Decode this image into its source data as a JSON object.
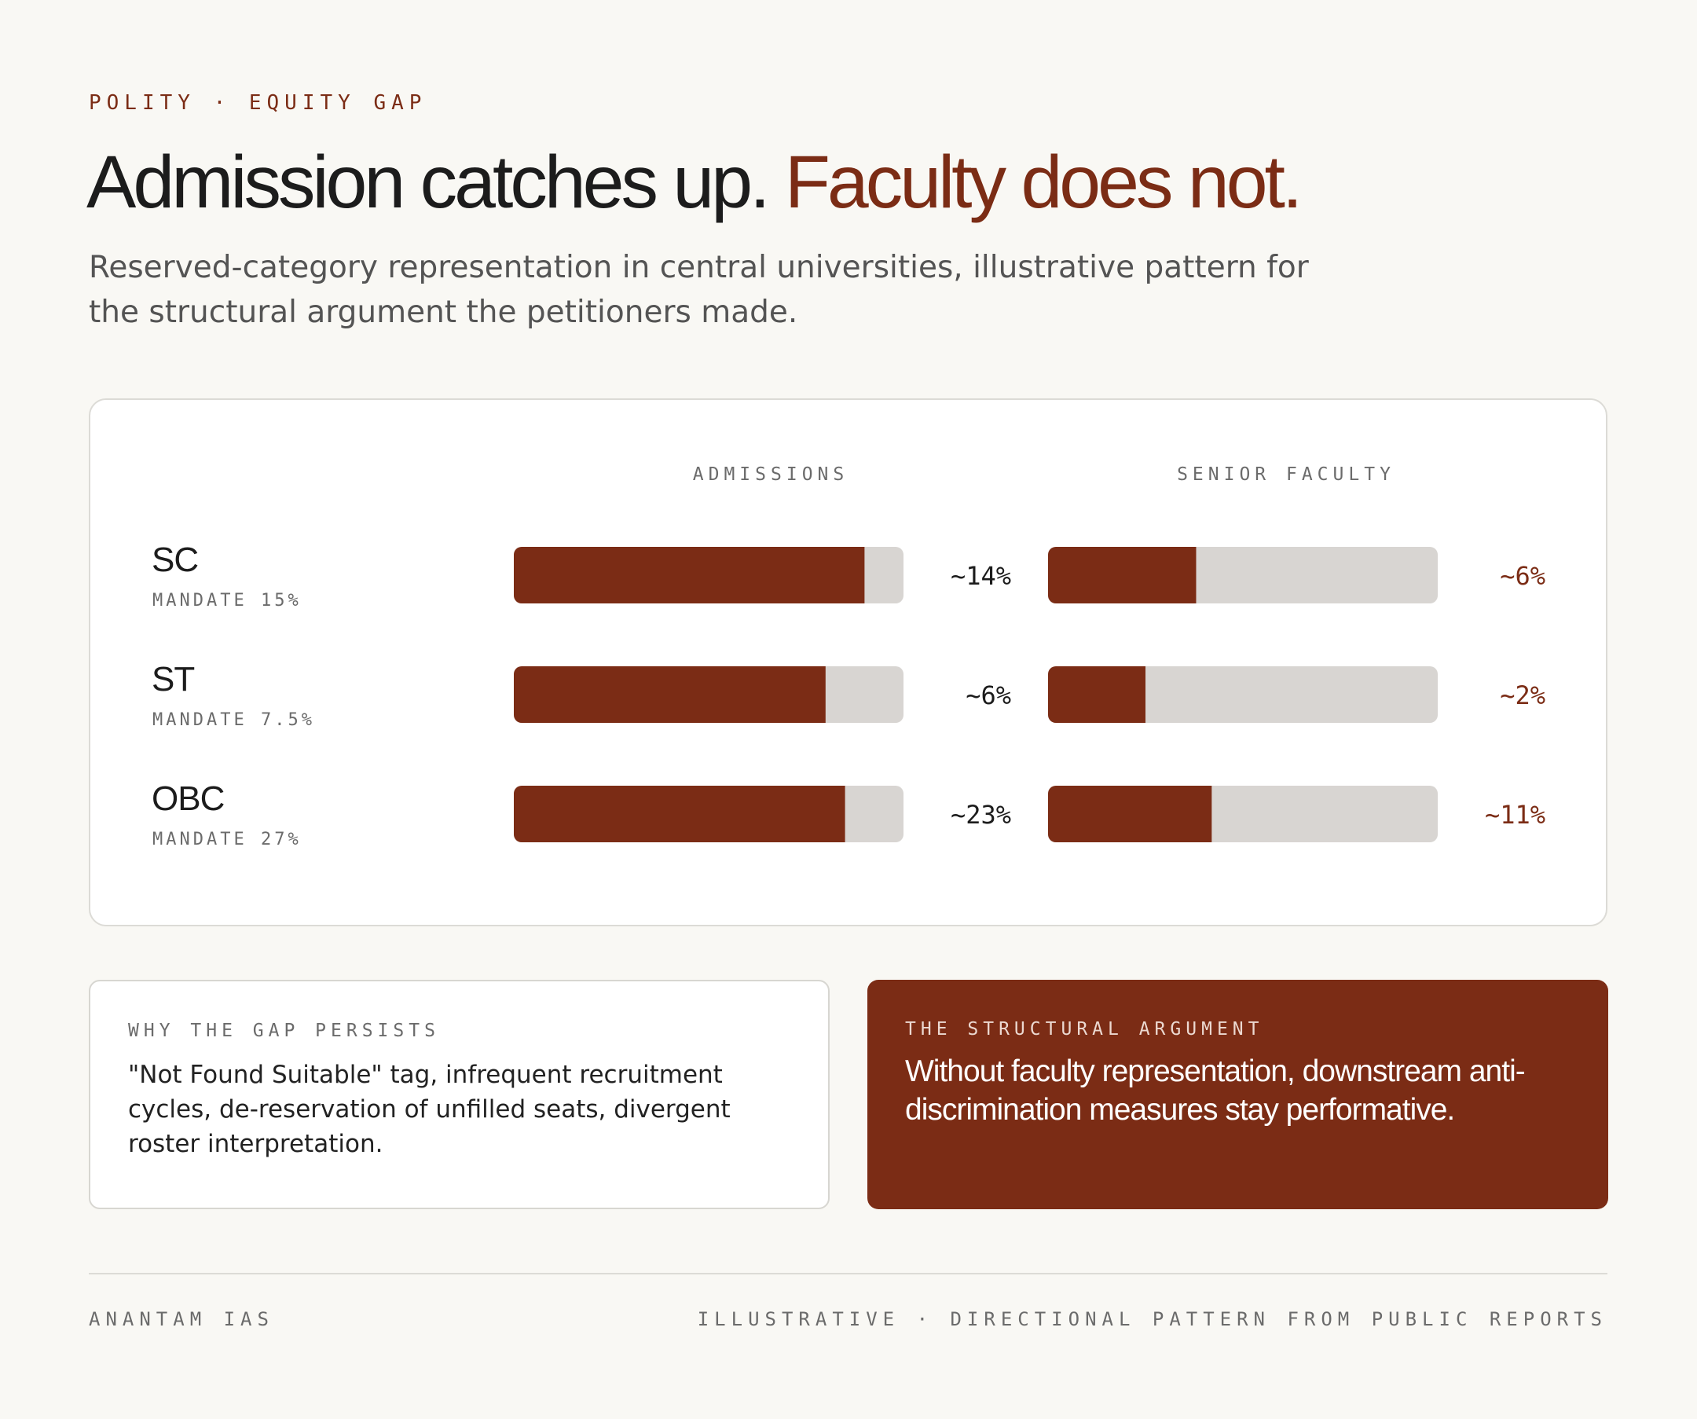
{
  "kicker": "POLITY · EQUITY GAP",
  "headline": {
    "lead": "Admission catches up.",
    "accent": "Faculty does not."
  },
  "subtitle": "Reserved-category representation in central universities, illustrative pattern for the structural argument the petitioners made.",
  "colors": {
    "accent": "#7b2c15",
    "track": "#d8d5d2",
    "background": "#f9f8f4"
  },
  "chart_data": {
    "type": "bar",
    "orientation": "horizontal",
    "groups": [
      "ADMISSIONS",
      "SENIOR FACULTY"
    ],
    "categories": [
      "SC",
      "ST",
      "OBC"
    ],
    "mandates": [
      "MANDATE 15%",
      "MANDATE 7.5%",
      "MANDATE 27%"
    ],
    "mandate_values": [
      15,
      7.5,
      27
    ],
    "series": [
      {
        "name": "ADMISSIONS",
        "values": [
          14,
          6,
          23
        ],
        "labels": [
          "~14%",
          "~6%",
          "~23%"
        ],
        "fill_fraction_of_mandate": [
          0.9,
          0.8,
          0.85
        ]
      },
      {
        "name": "SENIOR FACULTY",
        "values": [
          6,
          2,
          11
        ],
        "labels": [
          "~6%",
          "~2%",
          "~11%"
        ],
        "fill_fraction_of_mandate": [
          0.38,
          0.25,
          0.42
        ]
      }
    ]
  },
  "why_card": {
    "label": "WHY THE GAP PERSISTS",
    "body": "\"Not Found Suitable\" tag, infrequent recruitment cycles, de-reservation of unfilled seats, divergent roster interpretation."
  },
  "argument_card": {
    "label": "THE STRUCTURAL ARGUMENT",
    "body": "Without faculty representation, downstream anti-discrimination measures stay performative."
  },
  "footer": {
    "left": "ANANTAM IAS",
    "right": "ILLUSTRATIVE · DIRECTIONAL PATTERN FROM PUBLIC REPORTS"
  }
}
